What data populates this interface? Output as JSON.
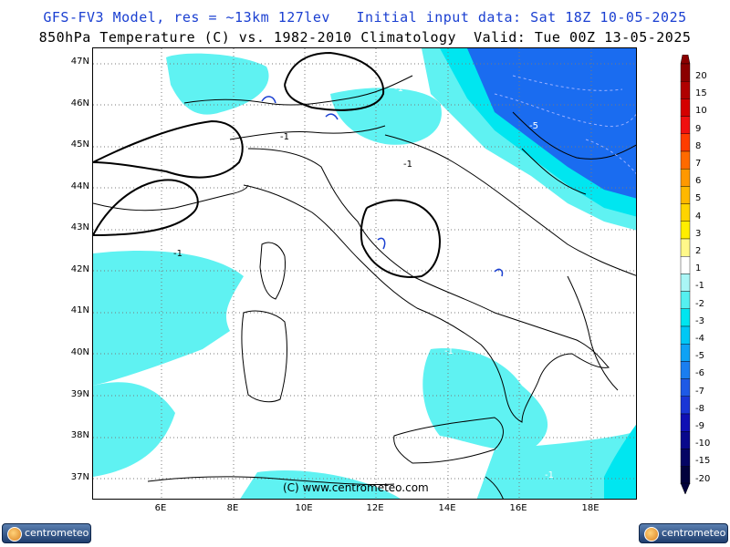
{
  "header": {
    "line1": "GFS-FV3 Model, res = ~13km 127lev   Initial input data: Sat 18Z 10-05-2025",
    "line2": "850hPa Temperature (C) vs. 1982-2010 Climatology  Valid: Tue 00Z 13-05-2025"
  },
  "axes": {
    "lat": [
      "47N",
      "46N",
      "45N",
      "44N",
      "43N",
      "42N",
      "41N",
      "40N",
      "39N",
      "38N",
      "37N"
    ],
    "lon": [
      "6E",
      "8E",
      "10E",
      "12E",
      "14E",
      "16E",
      "18E"
    ]
  },
  "contour_labels": [
    "-1",
    "-1",
    "-1",
    "-1",
    "-5",
    "-1",
    "-1",
    "-1",
    "-1"
  ],
  "credit": "(C) www.centrometeo.com",
  "colorbar": {
    "levels": [
      "20",
      "15",
      "10",
      "9",
      "8",
      "7",
      "6",
      "5",
      "4",
      "3",
      "2",
      "1",
      "-1",
      "-2",
      "-3",
      "-4",
      "-5",
      "-6",
      "-7",
      "-8",
      "-9",
      "-10",
      "-15",
      "-20"
    ],
    "colors": [
      "#8b0000",
      "#b00000",
      "#d40000",
      "#f01010",
      "#ff3c00",
      "#ff6a00",
      "#ff9800",
      "#ffb800",
      "#ffd400",
      "#ffee00",
      "#fff88a",
      "#ffffff",
      "#aaf6f6",
      "#55f0f0",
      "#00e6f0",
      "#00c8f5",
      "#0ea2f5",
      "#1a7ef0",
      "#1e5ae6",
      "#1a36d6",
      "#1010b4",
      "#08088c",
      "#040464",
      "#02023c"
    ]
  },
  "logos": {
    "left": "centrometeo",
    "right": "centrometeo"
  },
  "colors": {
    "title_blue": "#1a3fd1",
    "anomaly_light": "#5ff2f2",
    "anomaly_medium": "#00e6f0",
    "anomaly_dark": "#1a6cf0"
  }
}
